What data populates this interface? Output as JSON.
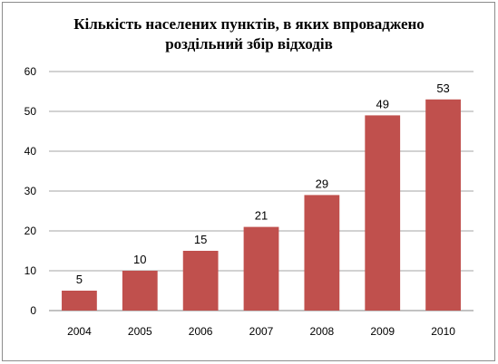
{
  "chart_data": {
    "type": "bar",
    "title_line1": "Кількість населених пунктів, в яких впроваджено",
    "title_line2": "роздільний збір відходів",
    "categories": [
      "2004",
      "2005",
      "2006",
      "2007",
      "2008",
      "2009",
      "2010"
    ],
    "values": [
      5,
      10,
      15,
      21,
      29,
      49,
      53
    ],
    "data_labels": [
      "5",
      "10",
      "15",
      "21",
      "29",
      "49",
      "53"
    ],
    "ylim": [
      0,
      60
    ],
    "yticks": [
      "0",
      "10",
      "20",
      "30",
      "40",
      "50",
      "60"
    ],
    "grid": true,
    "legend": "none",
    "bar_color": "#c0504d",
    "grid_color": "#a6a6a6"
  }
}
